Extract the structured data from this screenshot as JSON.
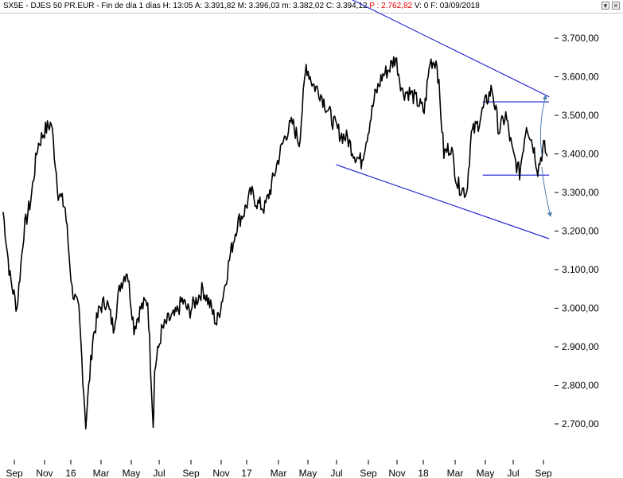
{
  "header": {
    "symbol": "SX5E - DJES 50 PR.EUR - Fin de día 1 días",
    "high": "H: 13:05",
    "open": "A: 3.391,82",
    "max": "M: 3.396,03",
    "min": "m: 3.382,02",
    "close": "C: 3.394,12",
    "p": "P : 2.762,82",
    "volume": "V: 0",
    "date": "F: 03/09/2018",
    "neg_color": "#e00000",
    "btn_down_label": "▼",
    "btn_close_label": "✕"
  },
  "chart_data": {
    "type": "line",
    "title": "SX5E - DJES 50 PR.EUR",
    "xlabel": "",
    "ylabel": "",
    "ylim": [
      2660,
      3760
    ],
    "y_ticks": [
      "3.700,00",
      "3.600,00",
      "3.500,00",
      "3.400,00",
      "3.300,00",
      "3.200,00",
      "3.100,00",
      "3.000,00",
      "2.900,00",
      "2.800,00",
      "2.700,00"
    ],
    "y_tick_values": [
      3700,
      3600,
      3500,
      3400,
      3300,
      3200,
      3100,
      3000,
      2900,
      2800,
      2700
    ],
    "x_ticks": [
      "Sep",
      "Nov",
      "16",
      "Mar",
      "May",
      "Jul",
      "Sep",
      "Nov",
      "17",
      "Mar",
      "May",
      "Jul",
      "Sep",
      "Nov",
      "18",
      "Mar",
      "May",
      "Jul",
      "Sep"
    ],
    "grid": false,
    "series_color": "#000000",
    "trend_color": "#1a1ad0",
    "arrow_color": "#4a7ab0",
    "series": [
      {
        "x": [
          "2015-08-24",
          "2015-09-07",
          "2015-09-21",
          "2015-10-05",
          "2015-10-19",
          "2015-11-02",
          "2015-11-16",
          "2015-11-30",
          "2015-12-14",
          "2015-12-28",
          "2016-01-11",
          "2016-01-25",
          "2016-02-08",
          "2016-02-22",
          "2016-03-07",
          "2016-03-21",
          "2016-04-04",
          "2016-04-18",
          "2016-05-02",
          "2016-05-16",
          "2016-05-30",
          "2016-06-13",
          "2016-06-24",
          "2016-06-27",
          "2016-07-11",
          "2016-07-25",
          "2016-08-08",
          "2016-08-22",
          "2016-09-05",
          "2016-09-19",
          "2016-10-03",
          "2016-10-17",
          "2016-10-31",
          "2016-11-14",
          "2016-11-28",
          "2016-12-12",
          "2016-12-26",
          "2017-01-09",
          "2017-01-23",
          "2017-02-06",
          "2017-02-20",
          "2017-03-06",
          "2017-03-20",
          "2017-04-03",
          "2017-04-17",
          "2017-05-01",
          "2017-05-15",
          "2017-05-29",
          "2017-06-12",
          "2017-06-26",
          "2017-07-10",
          "2017-07-24",
          "2017-08-07",
          "2017-08-21",
          "2017-09-04",
          "2017-09-18",
          "2017-10-02",
          "2017-10-16",
          "2017-10-30",
          "2017-11-13",
          "2017-11-27",
          "2017-12-11",
          "2017-12-27",
          "2018-01-08",
          "2018-01-22",
          "2018-02-05",
          "2018-02-19",
          "2018-03-05",
          "2018-03-23",
          "2018-04-02",
          "2018-04-16",
          "2018-04-30",
          "2018-05-14",
          "2018-05-28",
          "2018-06-11",
          "2018-06-25",
          "2018-07-09",
          "2018-07-23",
          "2018-08-06",
          "2018-08-15",
          "2018-08-27",
          "2018-09-03"
        ],
        "values": [
          3250,
          3080,
          3000,
          3200,
          3280,
          3420,
          3460,
          3480,
          3300,
          3260,
          3050,
          2990,
          2700,
          2920,
          3000,
          3020,
          2950,
          3060,
          3100,
          2950,
          3000,
          3020,
          2700,
          2840,
          2940,
          2970,
          2980,
          3020,
          2990,
          3020,
          3050,
          3010,
          2960,
          3040,
          3140,
          3220,
          3250,
          3300,
          3270,
          3260,
          3320,
          3390,
          3450,
          3480,
          3430,
          3630,
          3580,
          3560,
          3520,
          3480,
          3450,
          3440,
          3400,
          3380,
          3460,
          3550,
          3600,
          3620,
          3650,
          3560,
          3560,
          3540,
          3510,
          3640,
          3640,
          3400,
          3420,
          3320,
          3300,
          3450,
          3480,
          3530,
          3570,
          3460,
          3500,
          3400,
          3350,
          3480,
          3420,
          3360,
          3420,
          3394
        ]
      }
    ],
    "trendlines": [
      {
        "from": [
          "2017-07-01",
          3820
        ],
        "to": [
          "2018-09-07",
          3548
        ]
      },
      {
        "from": [
          "2017-07-01",
          3372
        ],
        "to": [
          "2018-09-07",
          3180
        ]
      },
      {
        "from": [
          "2018-04-25",
          3535
        ],
        "to": [
          "2018-09-07",
          3535
        ]
      },
      {
        "from": [
          "2018-04-25",
          3345
        ],
        "to": [
          "2018-09-07",
          3345
        ]
      }
    ]
  }
}
